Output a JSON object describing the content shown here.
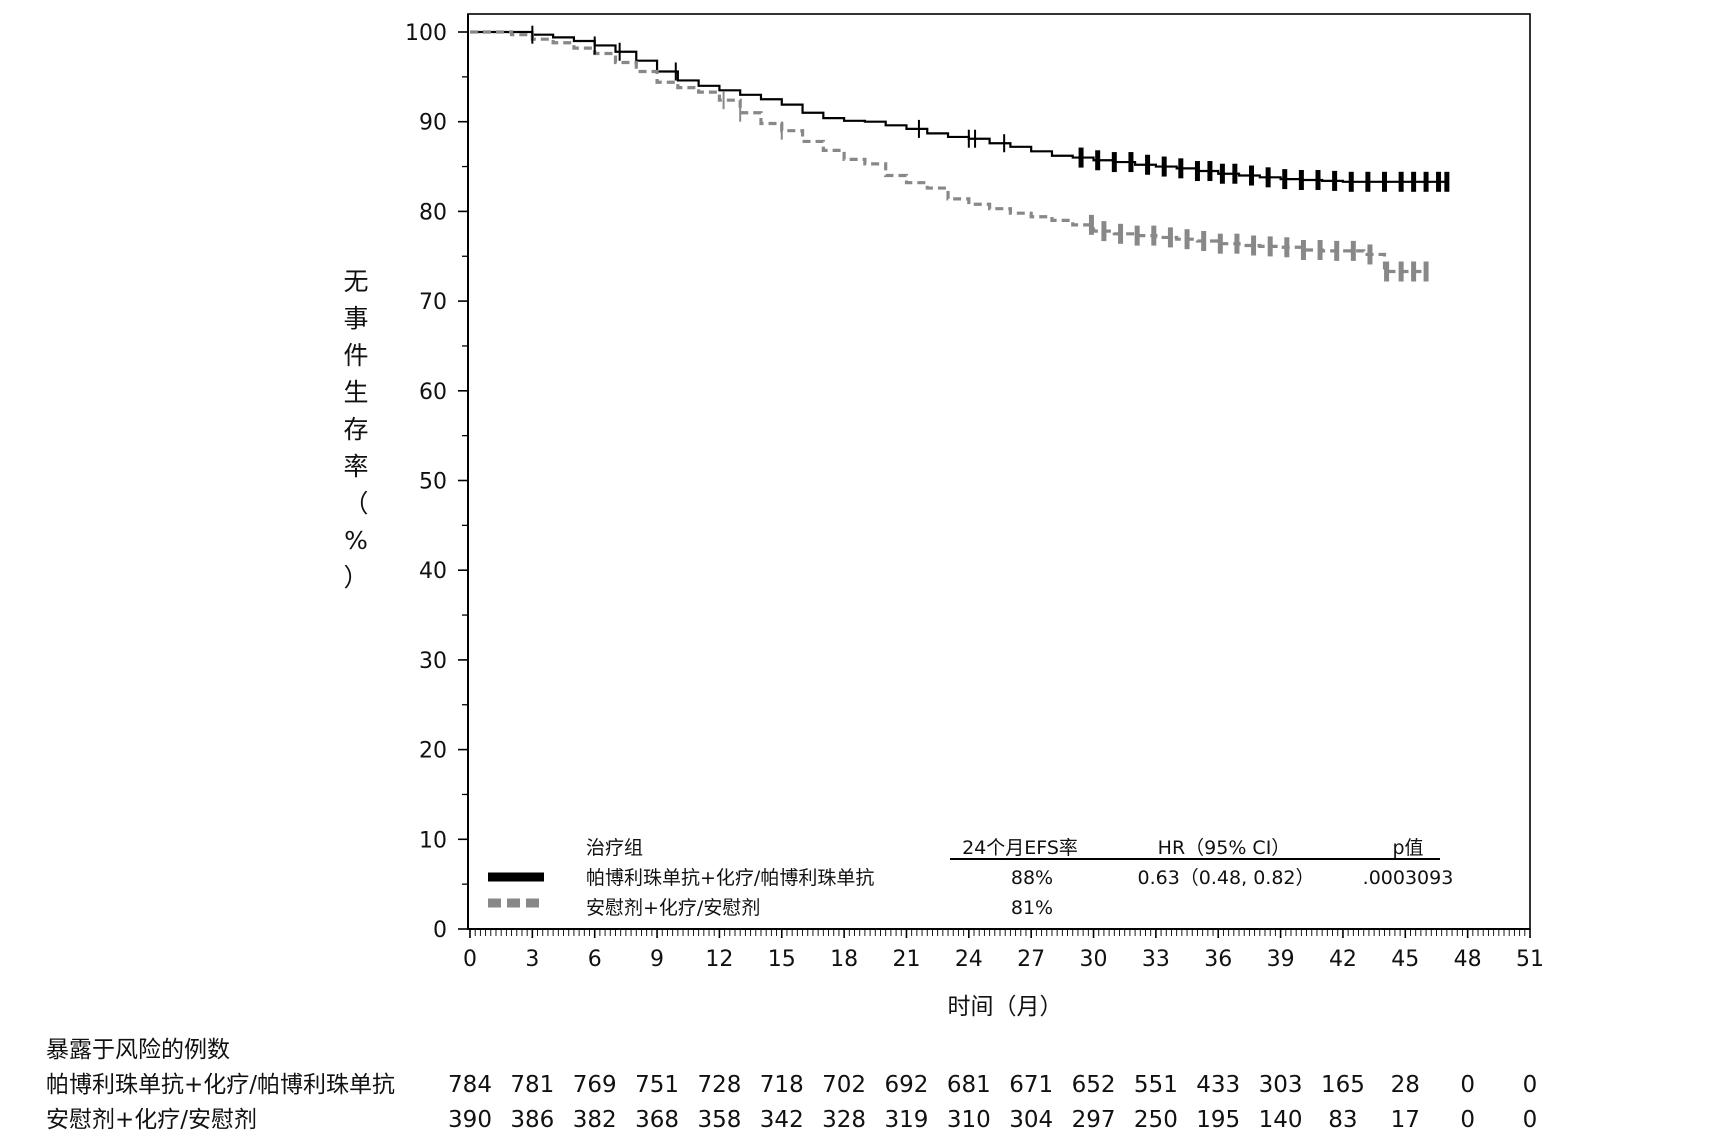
{
  "chart_data": {
    "type": "line",
    "chart_style": "kaplan-meier",
    "ylabel": "无事件生存率（%）",
    "xlabel": "时间（月）",
    "xlim": [
      0,
      51
    ],
    "ylim": [
      0,
      100
    ],
    "x_ticks": [
      "0",
      "3",
      "6",
      "9",
      "12",
      "15",
      "18",
      "21",
      "24",
      "27",
      "30",
      "33",
      "36",
      "39",
      "42",
      "45",
      "48",
      "51"
    ],
    "y_ticks": [
      "0",
      "10",
      "20",
      "30",
      "40",
      "50",
      "60",
      "70",
      "80",
      "90",
      "100"
    ],
    "grid": false,
    "series": [
      {
        "name": "帕博利珠单抗+化疗/帕博利珠单抗",
        "color": "#000000",
        "dash": "solid",
        "points": [
          [
            0,
            100
          ],
          [
            2,
            100
          ],
          [
            3,
            99.7
          ],
          [
            4,
            99.4
          ],
          [
            5,
            99
          ],
          [
            6,
            98.5
          ],
          [
            7,
            97.8
          ],
          [
            8,
            96.8
          ],
          [
            9,
            95.6
          ],
          [
            10,
            94.6
          ],
          [
            11,
            94
          ],
          [
            12,
            93.5
          ],
          [
            13,
            93
          ],
          [
            14,
            92.5
          ],
          [
            15,
            91.9
          ],
          [
            16,
            91
          ],
          [
            17,
            90.4
          ],
          [
            18,
            90.1
          ],
          [
            19,
            90
          ],
          [
            20,
            89.6
          ],
          [
            21,
            89.2
          ],
          [
            22,
            88.7
          ],
          [
            23,
            88.3
          ],
          [
            24,
            88.1
          ],
          [
            25,
            87.6
          ],
          [
            26,
            87.2
          ],
          [
            27,
            86.7
          ],
          [
            28,
            86.2
          ],
          [
            29,
            86
          ],
          [
            30,
            85.7
          ],
          [
            31,
            85.5
          ],
          [
            32,
            85.2
          ],
          [
            33,
            85
          ],
          [
            34,
            84.8
          ],
          [
            35,
            84.5
          ],
          [
            36,
            84.2
          ],
          [
            37,
            84
          ],
          [
            38,
            83.8
          ],
          [
            39,
            83.6
          ],
          [
            40,
            83.5
          ],
          [
            41,
            83.4
          ],
          [
            42,
            83.3
          ],
          [
            43,
            83.3
          ],
          [
            44,
            83.3
          ],
          [
            45,
            83.3
          ],
          [
            46,
            83.3
          ],
          [
            47,
            83.3
          ]
        ],
        "censor_x": [
          3,
          6,
          7.2,
          9.9,
          21.6,
          24,
          24.3,
          25.7,
          29.4,
          30.2,
          31,
          31.8,
          32.6,
          33.4,
          34.2,
          35,
          35.6,
          36.2,
          36.8,
          37.6,
          38.4,
          39.2,
          40,
          40.8,
          41.6,
          42.4,
          43.2,
          44,
          44.8,
          45.4,
          46,
          46.6,
          47
        ]
      },
      {
        "name": "安慰剂+化疗/安慰剂",
        "color": "#888888",
        "dash": "dashed",
        "points": [
          [
            0,
            100
          ],
          [
            2,
            99.7
          ],
          [
            3,
            99.2
          ],
          [
            4,
            98.8
          ],
          [
            5,
            98.2
          ],
          [
            6,
            97.6
          ],
          [
            7,
            96.6
          ],
          [
            8,
            95.6
          ],
          [
            9,
            94.4
          ],
          [
            10,
            93.8
          ],
          [
            11,
            93.3
          ],
          [
            12,
            92.4
          ],
          [
            13,
            91
          ],
          [
            14,
            89.8
          ],
          [
            15,
            89
          ],
          [
            16,
            87.8
          ],
          [
            17,
            86.8
          ],
          [
            18,
            85.8
          ],
          [
            19,
            85.3
          ],
          [
            20,
            84
          ],
          [
            21,
            83.2
          ],
          [
            22,
            82.6
          ],
          [
            23,
            81.4
          ],
          [
            24,
            80.8
          ],
          [
            25,
            80.3
          ],
          [
            26,
            79.8
          ],
          [
            27,
            79.4
          ],
          [
            28,
            79
          ],
          [
            29,
            78.5
          ],
          [
            30,
            77.8
          ],
          [
            31,
            77.5
          ],
          [
            32,
            77.3
          ],
          [
            33,
            77.1
          ],
          [
            34,
            76.9
          ],
          [
            35,
            76.7
          ],
          [
            36,
            76.4
          ],
          [
            37,
            76.2
          ],
          [
            38,
            76.1
          ],
          [
            39,
            76
          ],
          [
            40,
            75.7
          ],
          [
            41,
            75.6
          ],
          [
            42,
            75.6
          ],
          [
            43,
            75.2
          ],
          [
            44,
            73.3
          ],
          [
            45,
            73.3
          ],
          [
            46,
            73.3
          ]
        ],
        "censor_x": [
          12.2,
          13,
          15,
          29.9,
          30.5,
          31.3,
          32.1,
          32.9,
          33.7,
          34.5,
          35.3,
          36.1,
          36.9,
          37.7,
          38.5,
          39.3,
          40.1,
          40.9,
          41.7,
          42.5,
          43.3,
          44.1,
          44.8,
          45.4,
          46
        ]
      }
    ],
    "legend": {
      "placement": "bottom-left",
      "headers": {
        "group": "治疗组",
        "efs": "24个月EFS率",
        "hr": "HR（95% CI）",
        "p": "p值"
      },
      "rows": [
        {
          "label": "帕博利珠单抗+化疗/帕博利珠单抗",
          "efs": "88%",
          "hr": "0.63（0.48, 0.82）",
          "p": ".0003093"
        },
        {
          "label": "安慰剂+化疗/安慰剂",
          "efs": "81%",
          "hr": "",
          "p": ""
        }
      ]
    },
    "risk_table": {
      "title": "暴露于风险的例数",
      "rows": [
        {
          "label": "帕博利珠单抗+化疗/帕博利珠单抗",
          "values": [
            "784",
            "781",
            "769",
            "751",
            "728",
            "718",
            "702",
            "692",
            "681",
            "671",
            "652",
            "551",
            "433",
            "303",
            "165",
            "28",
            "0",
            "0"
          ]
        },
        {
          "label": "安慰剂+化疗/安慰剂",
          "values": [
            "390",
            "386",
            "382",
            "368",
            "358",
            "342",
            "328",
            "319",
            "310",
            "304",
            "297",
            "250",
            "195",
            "140",
            "83",
            "17",
            "0",
            "0"
          ]
        }
      ]
    }
  }
}
